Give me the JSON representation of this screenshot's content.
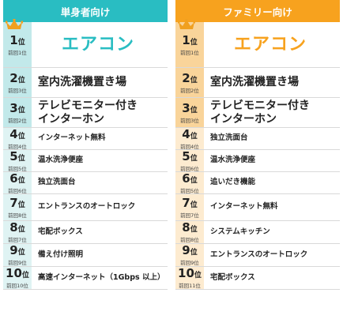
{
  "colors": {
    "single": "#29bdc2",
    "family": "#f7a21e"
  },
  "left": {
    "header": "単身者向け",
    "rows": [
      {
        "rank": "1",
        "suffix": "位",
        "prev": "前回1位",
        "label": "エアコン"
      },
      {
        "rank": "2",
        "suffix": "位",
        "prev": "前回3位",
        "label": "室内洗濯機置き場"
      },
      {
        "rank": "3",
        "suffix": "位",
        "prev": "前回2位",
        "label": "テレビモニター付き\nインターホン"
      },
      {
        "rank": "4",
        "suffix": "位",
        "prev": "前回4位",
        "label": "インターネット無料"
      },
      {
        "rank": "5",
        "suffix": "位",
        "prev": "前回5位",
        "label": "温水洗浄便座"
      },
      {
        "rank": "6",
        "suffix": "位",
        "prev": "前回6位",
        "label": "独立洗面台"
      },
      {
        "rank": "7",
        "suffix": "位",
        "prev": "前回8位",
        "label": "エントランスのオートロック"
      },
      {
        "rank": "8",
        "suffix": "位",
        "prev": "前回7位",
        "label": "宅配ボックス"
      },
      {
        "rank": "9",
        "suffix": "位",
        "prev": "前回9位",
        "label": "備え付け照明"
      },
      {
        "rank": "10",
        "suffix": "位",
        "prev": "前回10位",
        "label": "高速インターネット（1Gbps 以上）"
      }
    ]
  },
  "right": {
    "header": "ファミリー向け",
    "rows": [
      {
        "rank": "1",
        "suffix": "位",
        "prev": "前回1位",
        "label": "エアコン"
      },
      {
        "rank": "2",
        "suffix": "位",
        "prev": "前回2位",
        "label": "室内洗濯機置き場"
      },
      {
        "rank": "3",
        "suffix": "位",
        "prev": "前回3位",
        "label": "テレビモニター付き\nインターホン"
      },
      {
        "rank": "4",
        "suffix": "位",
        "prev": "前回4位",
        "label": "独立洗面台"
      },
      {
        "rank": "5",
        "suffix": "位",
        "prev": "前回6位",
        "label": "温水洗浄便座"
      },
      {
        "rank": "6",
        "suffix": "位",
        "prev": "前回5位",
        "label": "追いだき機能"
      },
      {
        "rank": "7",
        "suffix": "位",
        "prev": "前回7位",
        "label": "インターネット無料"
      },
      {
        "rank": "8",
        "suffix": "位",
        "prev": "前回8位",
        "label": "システムキッチン"
      },
      {
        "rank": "9",
        "suffix": "位",
        "prev": "前回9位",
        "label": "エントランスのオートロック"
      },
      {
        "rank": "10",
        "suffix": "位",
        "prev": "前回11位",
        "label": "宅配ボックス"
      }
    ]
  }
}
